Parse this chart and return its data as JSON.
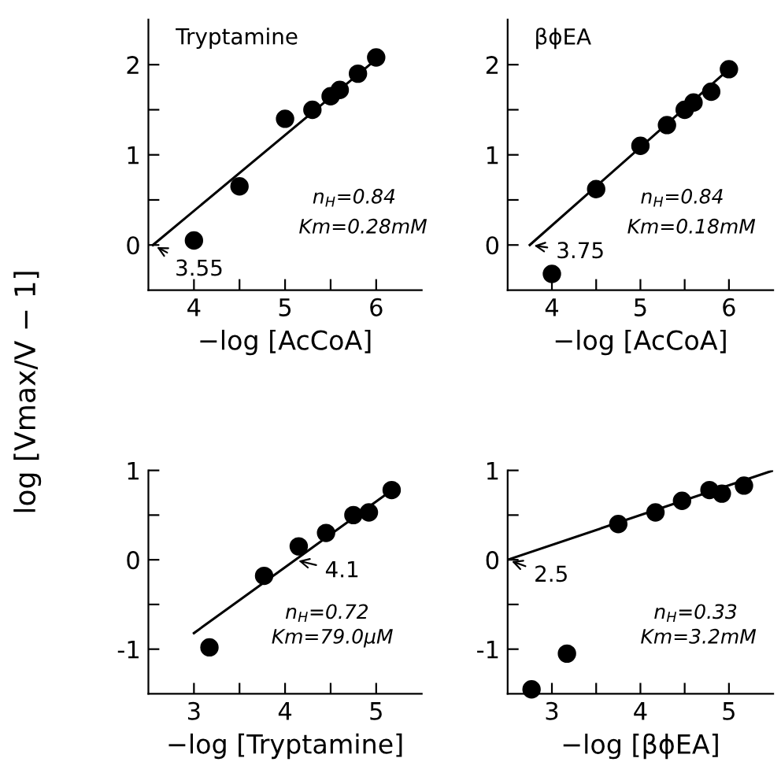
{
  "chart_data": [
    {
      "type": "scatter",
      "title": "Tryptamine",
      "xlabel": "−log [AcCoA]",
      "ylabel": "log [Vmax/V − 1]",
      "xlim": [
        3.5,
        6.5
      ],
      "ylim": [
        -0.5,
        2.5
      ],
      "xticks": [
        4,
        {
          "value": 4.5,
          "label": null
        },
        5,
        {
          "value": 5.5,
          "label": null
        },
        6
      ],
      "yticks": [
        0,
        {
          "value": 0.5,
          "label": null
        },
        1,
        {
          "value": 1.5,
          "label": null
        },
        2
      ],
      "series": [
        {
          "marker": "circle",
          "color": "#000000",
          "x": [
            4,
            4.5,
            5,
            5.3,
            5.5,
            5.6,
            5.8,
            6
          ],
          "values": [
            0.05,
            0.65,
            1.4,
            1.5,
            1.65,
            1.72,
            1.9,
            2.08
          ]
        },
        {
          "type": "line",
          "color": "#000000",
          "x": [
            3.55,
            6.0
          ],
          "values": [
            0,
            2.06
          ]
        }
      ],
      "annotations": [
        {
          "text": "3.55",
          "x": 3.55,
          "y": 0
        },
        "n$_{H}$=0.84",
        "Km=0.28mM"
      ]
    },
    {
      "type": "scatter",
      "title": "βϕEA",
      "xlabel": "−log [AcCoA]",
      "xlim": [
        3.5,
        6.5
      ],
      "ylim": [
        -0.5,
        2.5
      ],
      "xticks": [
        4,
        {
          "value": 4.5,
          "label": null
        },
        5,
        {
          "value": 5.5,
          "label": null
        },
        6
      ],
      "yticks": [
        0,
        {
          "value": 0.5,
          "label": null
        },
        1,
        {
          "value": 1.5,
          "label": null
        },
        2
      ],
      "series": [
        {
          "marker": "circle",
          "color": "#000000",
          "x": [
            4,
            4.5,
            5,
            5.3,
            5.5,
            5.6,
            5.8,
            6
          ],
          "values": [
            -0.32,
            0.62,
            1.1,
            1.33,
            1.5,
            1.58,
            1.7,
            1.95
          ]
        },
        {
          "type": "line",
          "color": "#000000",
          "x": [
            3.75,
            6.0
          ],
          "values": [
            0,
            1.95
          ]
        }
      ],
      "annotations": [
        {
          "text": "3.75",
          "x": 3.75,
          "y": 0
        },
        "n$_{H}$=0.84",
        "Km=0.18mM"
      ]
    },
    {
      "type": "scatter",
      "xlabel": "−log [Tryptamine]",
      "xlim": [
        2.5,
        5.5
      ],
      "ylim": [
        -1.5,
        1
      ],
      "xticks": [
        3,
        {
          "value": 3.5,
          "label": null
        },
        4,
        {
          "value": 4.5,
          "label": null
        },
        5
      ],
      "yticks": [
        -1,
        {
          "value": -0.5,
          "label": null
        },
        0,
        {
          "value": 0.5,
          "label": null
        },
        1
      ],
      "series": [
        {
          "marker": "circle",
          "color": "#000000",
          "x": [
            3.17,
            3.77,
            4.15,
            4.45,
            4.75,
            4.92,
            5.17
          ],
          "values": [
            -0.98,
            -0.18,
            0.15,
            0.3,
            0.5,
            0.53,
            0.78
          ]
        },
        {
          "type": "line",
          "color": "#000000",
          "x": [
            3.0,
            5.2
          ],
          "values": [
            -0.82,
            0.8
          ]
        }
      ],
      "annotations": [
        {
          "text": "4.1",
          "x": 4.1,
          "y": 0
        },
        "n$_{H}$=0.72",
        "Km=79.0μM"
      ]
    },
    {
      "type": "scatter",
      "xlabel": "−log [βϕEA]",
      "xlim": [
        2.5,
        5.5
      ],
      "ylim": [
        -1.5,
        1
      ],
      "xticks": [
        3,
        {
          "value": 3.5,
          "label": null
        },
        4,
        {
          "value": 4.5,
          "label": null
        },
        5
      ],
      "yticks": [
        -1,
        {
          "value": -0.5,
          "label": null
        },
        0,
        {
          "value": 0.5,
          "label": null
        },
        1
      ],
      "series": [
        {
          "marker": "circle",
          "color": "#000000",
          "x": [
            2.77,
            3.17,
            3.75,
            4.17,
            4.47,
            4.78,
            4.92,
            5.17
          ],
          "values": [
            -1.45,
            -1.05,
            0.4,
            0.53,
            0.66,
            0.78,
            0.74,
            0.83
          ]
        },
        {
          "type": "line",
          "color": "#000000",
          "x": [
            2.5,
            5.5
          ],
          "values": [
            0,
            1.0
          ]
        }
      ],
      "annotations": [
        {
          "text": "2.5",
          "x": 2.5,
          "y": 0
        },
        "n$_{H}$=0.33",
        "Km=3.2mM"
      ]
    }
  ]
}
